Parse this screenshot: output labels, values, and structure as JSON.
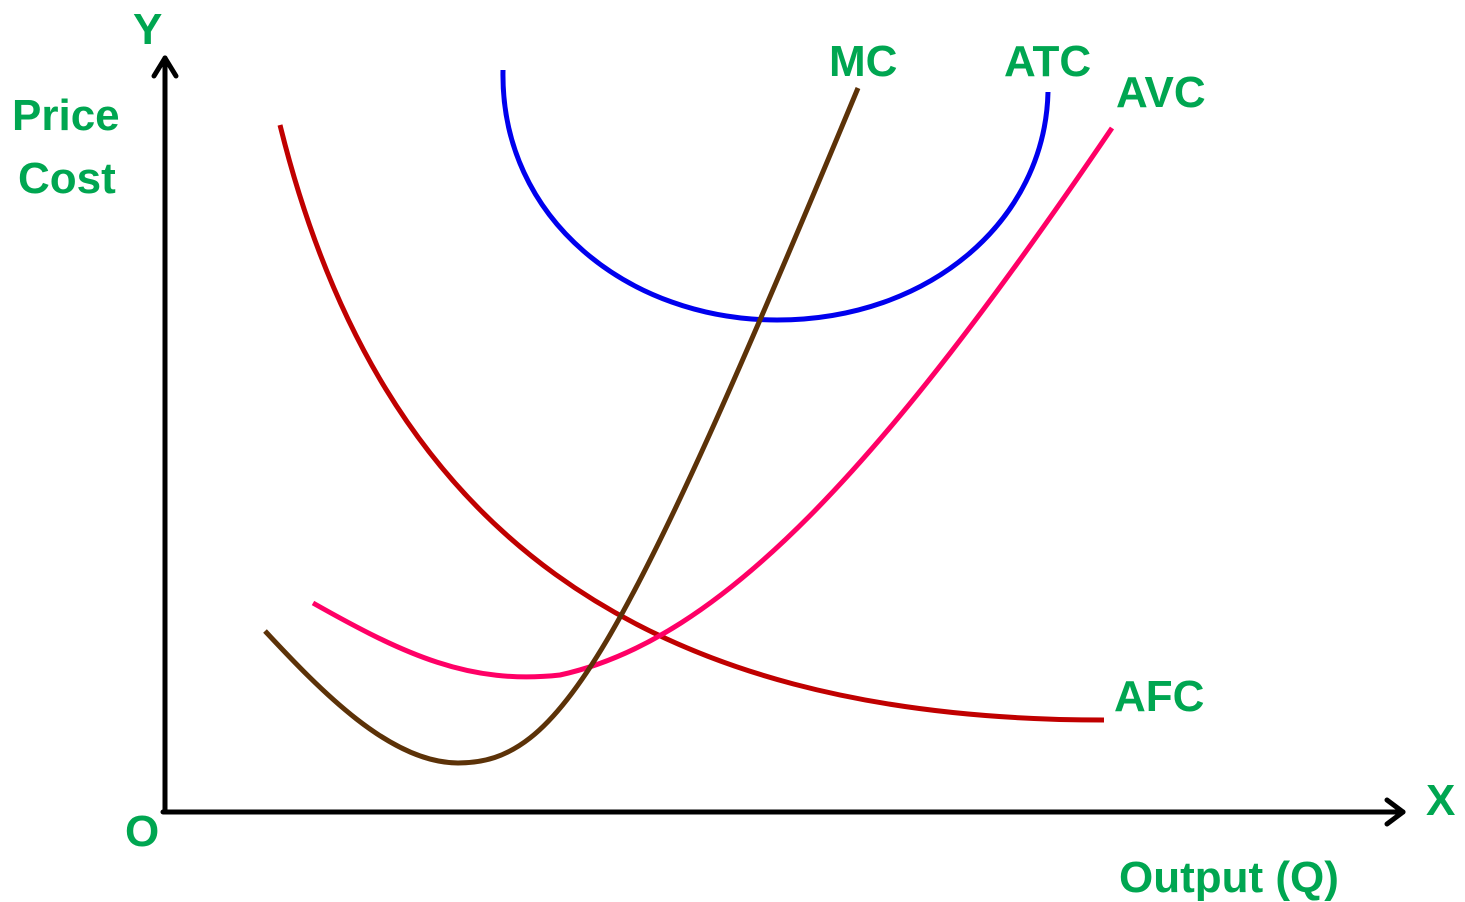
{
  "labels": {
    "y_axis": "Y",
    "x_axis": "X",
    "origin": "O",
    "y_title_line1": "Price",
    "y_title_line2": "Cost",
    "x_title": "Output (Q)"
  },
  "curves": {
    "mc": "MC",
    "atc": "ATC",
    "avc": "AVC",
    "afc": "AFC"
  },
  "colors": {
    "label": "#00a651",
    "axis": "#000000",
    "mc": "#5c3208",
    "atc": "#0000ee",
    "avc": "#ff0066",
    "afc": "#c00000"
  }
}
